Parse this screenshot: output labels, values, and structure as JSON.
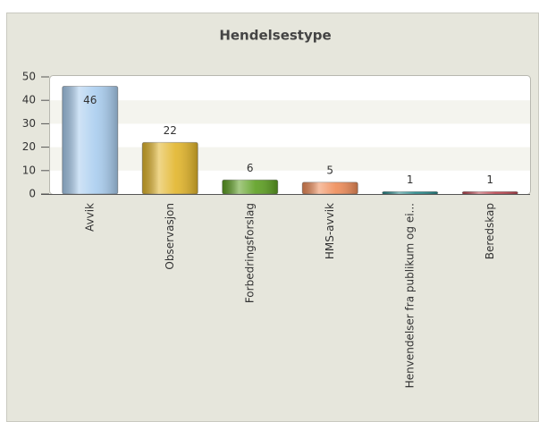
{
  "chart_data": {
    "type": "bar",
    "title": "Hendelsestype",
    "categories": [
      "Avvik",
      "Observasjon",
      "Forbedringsforslag",
      "HMS-avvik",
      "Henvendelser fra publikum og ei...",
      "Beredskap"
    ],
    "values": [
      46,
      22,
      6,
      5,
      1,
      1
    ],
    "colors": [
      "#a9cdef",
      "#e2b52a",
      "#5c9f20",
      "#ef8c58",
      "#1e8a8c",
      "#c4414c"
    ],
    "ylim": [
      0,
      50
    ],
    "yticks": [
      0,
      10,
      20,
      30,
      40,
      50
    ],
    "grid": true
  }
}
